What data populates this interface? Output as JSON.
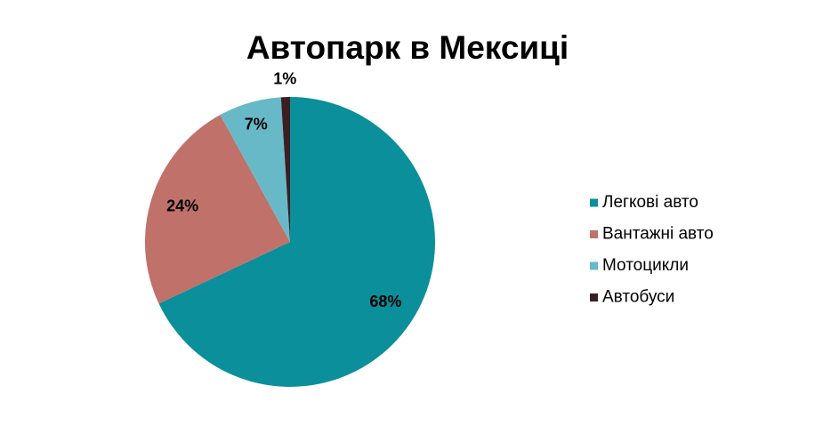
{
  "chart_data": {
    "type": "pie",
    "title": "Автопарк в Мексиці",
    "categories": [
      "Легкові авто",
      "Вантажні авто",
      "Мотоцикли",
      "Автобуси"
    ],
    "values": [
      68,
      24,
      7,
      1
    ],
    "value_labels": [
      "68%",
      "24%",
      "7%",
      "1%"
    ],
    "colors": [
      "#0b8f9b",
      "#c0716a",
      "#68b9c8",
      "#3b1d22"
    ],
    "legend": "right"
  }
}
